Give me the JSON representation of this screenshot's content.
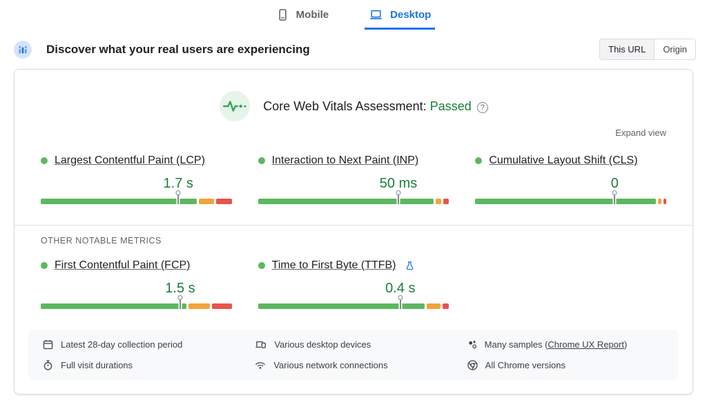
{
  "colors": {
    "accent": "#1a73e8",
    "pass_green": "#188038",
    "good": "#5cb85f",
    "needs_improvement": "#f2a33c",
    "poor": "#e9534a"
  },
  "device_tabs": {
    "items": [
      {
        "label": "Mobile",
        "icon": "mobile-icon",
        "active": false
      },
      {
        "label": "Desktop",
        "icon": "desktop-icon",
        "active": true
      }
    ]
  },
  "field_header": {
    "icon": "users-data-icon",
    "title": "Discover what your real users are experiencing",
    "scope_toggle": {
      "options": [
        "This URL",
        "Origin"
      ],
      "selected": "This URL"
    }
  },
  "assessment": {
    "icon": "pulse-icon",
    "title": "Core Web Vitals Assessment:",
    "status": "Passed",
    "help_icon": "help-icon",
    "help_glyph": "?"
  },
  "expand_view_label": "Expand view",
  "other_metrics_label": "OTHER NOTABLE METRICS",
  "metrics": {
    "core": [
      {
        "id": "lcp",
        "label": "Largest Contentful Paint (LCP)",
        "value": "1.7 s",
        "experimental": false,
        "marker_pct": 72,
        "distribution": {
          "good": 83.5,
          "needs_improvement": 8,
          "poor": 8.5
        }
      },
      {
        "id": "inp",
        "label": "Interaction to Next Paint (INP)",
        "value": "50 ms",
        "experimental": false,
        "marker_pct": 73.5,
        "distribution": {
          "good": 94,
          "needs_improvement": 3,
          "poor": 3
        }
      },
      {
        "id": "cls",
        "label": "Cumulative Layout Shift (CLS)",
        "value": "0",
        "experimental": false,
        "marker_pct": 73,
        "distribution": {
          "good": 96.5,
          "needs_improvement": 2,
          "poor": 1.5
        }
      }
    ],
    "other": [
      {
        "id": "fcp",
        "label": "First Contentful Paint (FCP)",
        "value": "1.5 s",
        "experimental": false,
        "marker_pct": 73,
        "distribution": {
          "good": 78,
          "needs_improvement": 11.5,
          "poor": 10.5
        }
      },
      {
        "id": "ttfb",
        "label": "Time to First Byte (TTFB)",
        "value": "0.4 s",
        "experimental": true,
        "marker_pct": 74.5,
        "distribution": {
          "good": 89,
          "needs_improvement": 7.5,
          "poor": 3.5
        }
      }
    ]
  },
  "footer": {
    "items": [
      {
        "icon": "calendar-icon",
        "before": "Latest 28-day collection period",
        "link": "",
        "after": ""
      },
      {
        "icon": "stopwatch-icon",
        "before": "Full visit durations",
        "link": "",
        "after": ""
      },
      {
        "icon": "devices-icon",
        "before": "Various desktop devices",
        "link": "",
        "after": ""
      },
      {
        "icon": "network-icon",
        "before": "Various network connections",
        "link": "",
        "after": ""
      },
      {
        "icon": "samples-icon",
        "before": "Many samples (",
        "link": "Chrome UX Report",
        "after": ")"
      },
      {
        "icon": "chrome-icon",
        "before": "All Chrome versions",
        "link": "",
        "after": ""
      }
    ]
  }
}
